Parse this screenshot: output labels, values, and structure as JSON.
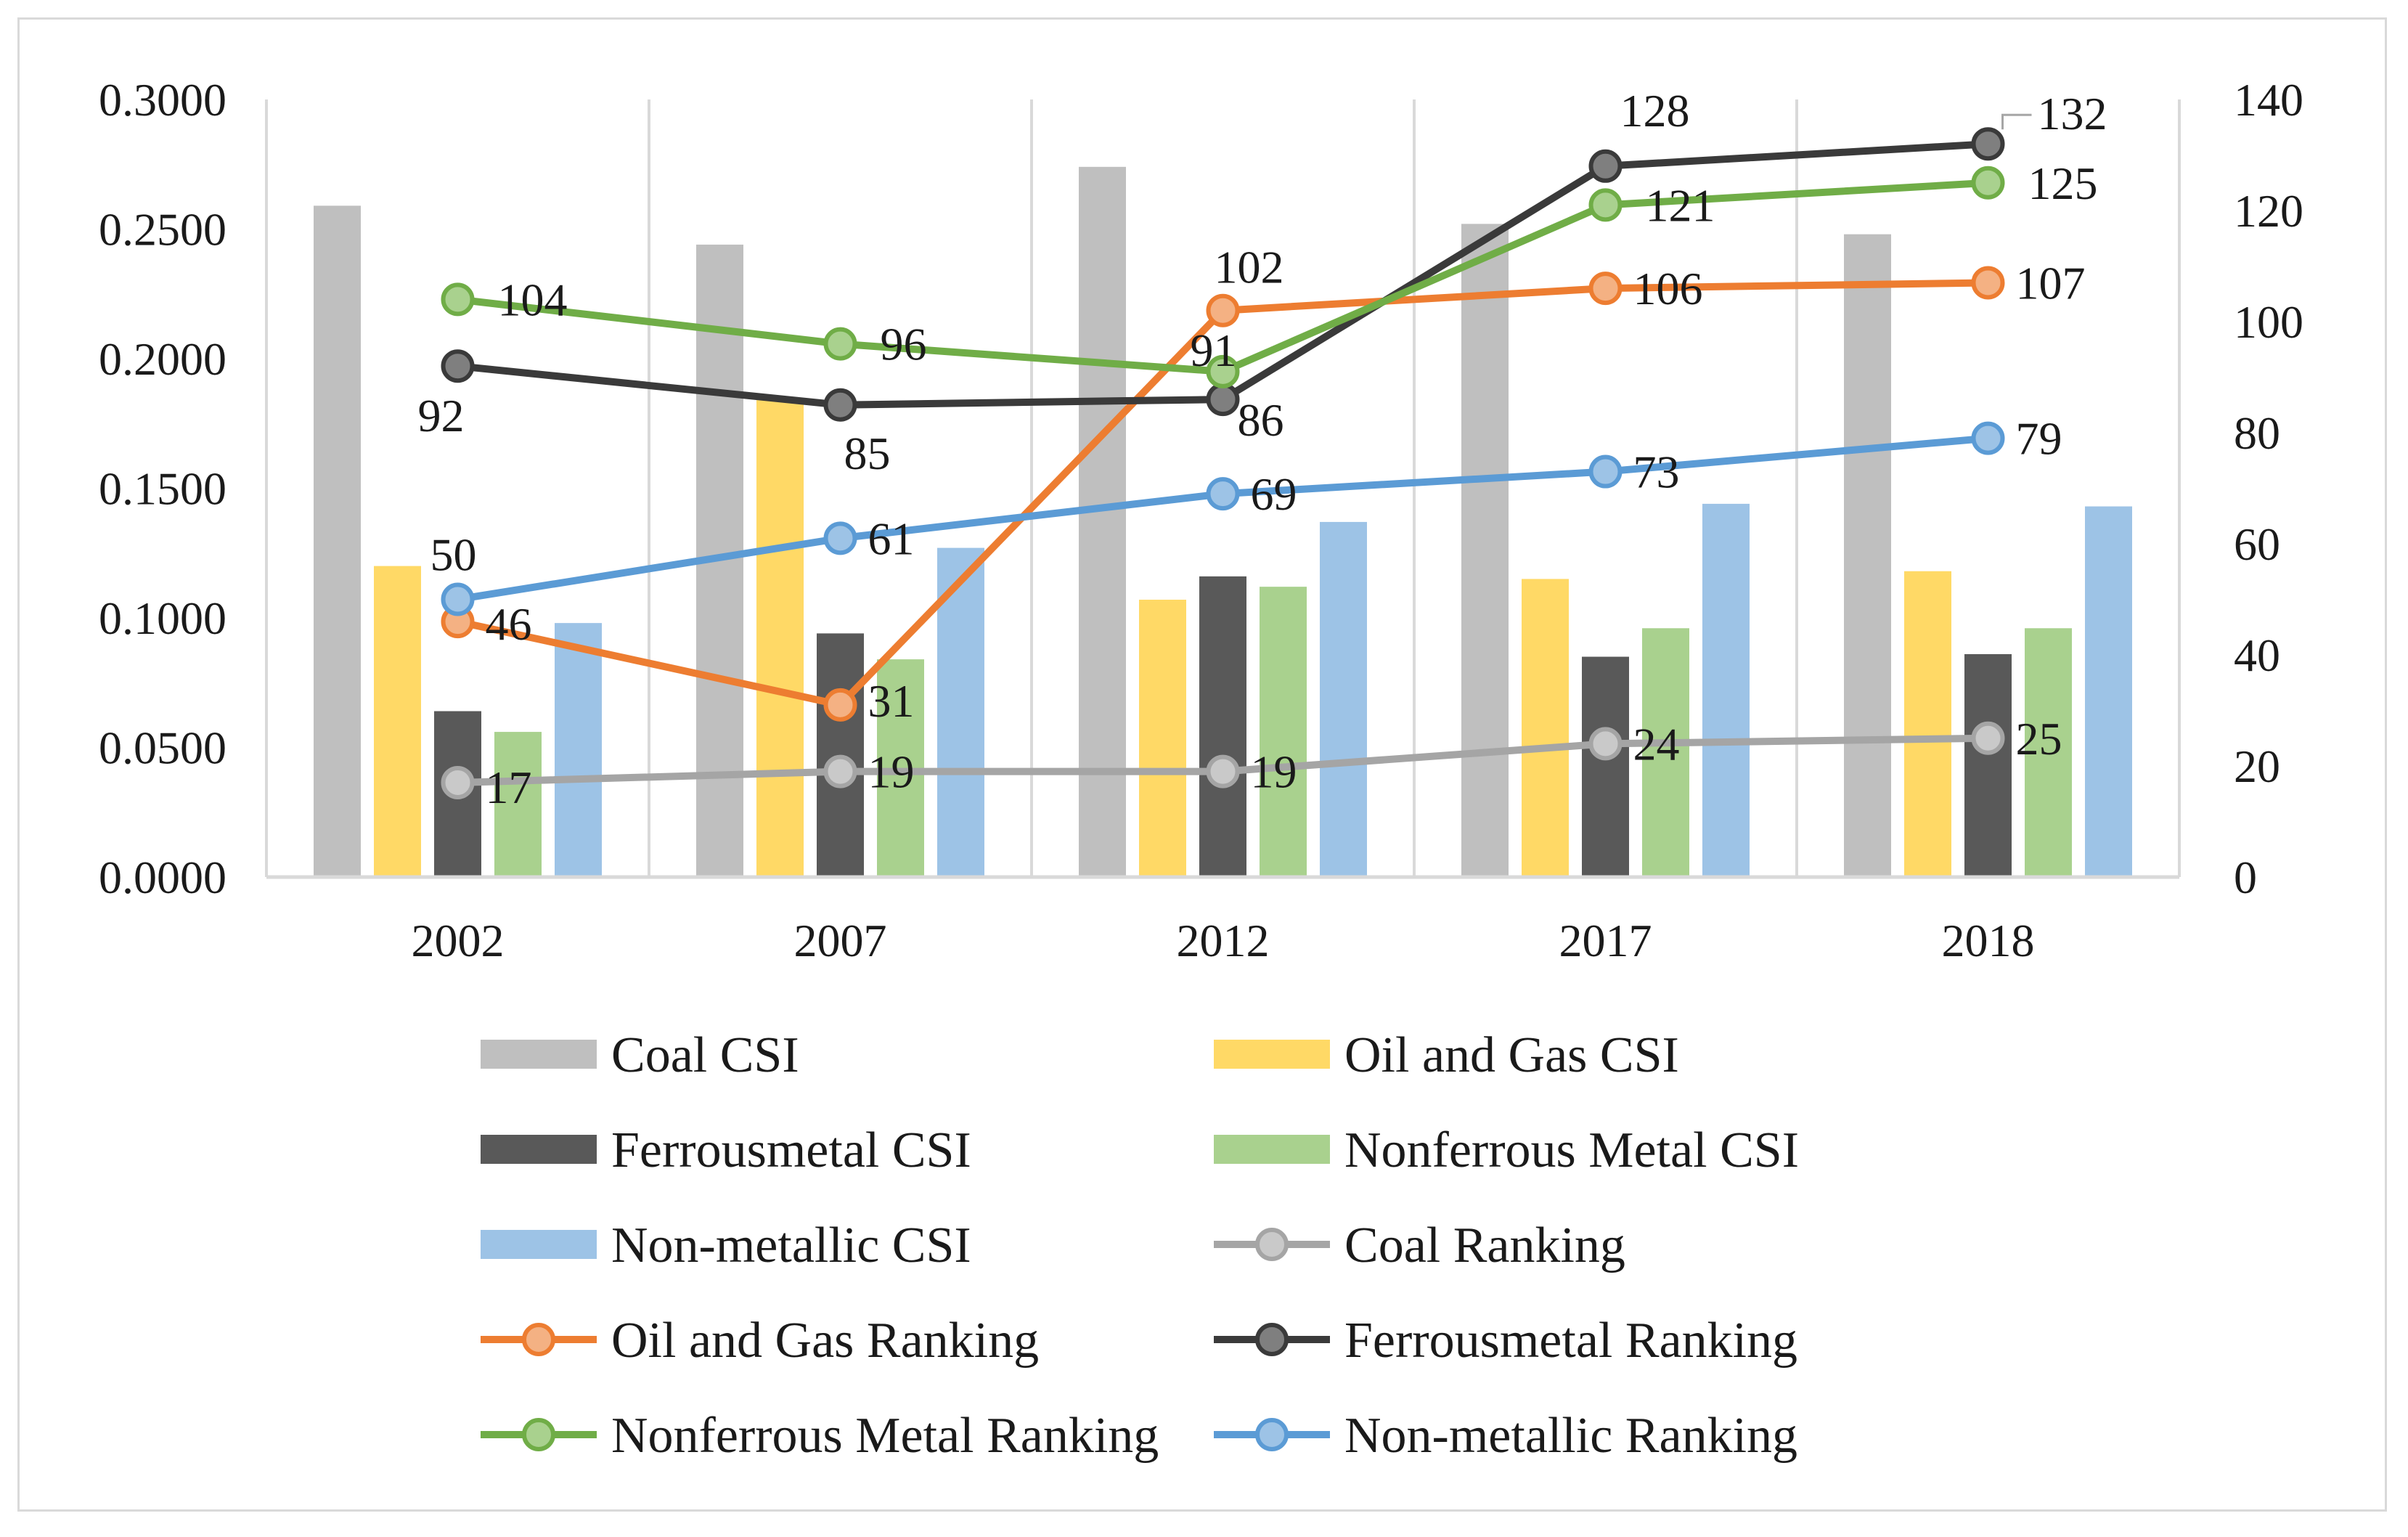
{
  "chart_data": {
    "type": "bar+line",
    "categories": [
      "2002",
      "2007",
      "2012",
      "2017",
      "2018"
    ],
    "left_axis": {
      "min": 0,
      "max": 0.3,
      "step": 0.05,
      "tick_labels": [
        "0.0000",
        "0.0500",
        "0.1000",
        "0.1500",
        "0.2000",
        "0.2500",
        "0.3000"
      ]
    },
    "right_axis": {
      "min": 0,
      "max": 140,
      "step": 20,
      "tick_labels": [
        "0",
        "20",
        "40",
        "60",
        "80",
        "100",
        "120",
        "140"
      ]
    },
    "grid": "vertical category separators",
    "legend_position": "bottom",
    "bar_series": [
      {
        "name": "Coal CSI",
        "color": "#bfbfbf",
        "values": [
          0.259,
          0.244,
          0.274,
          0.252,
          0.248
        ]
      },
      {
        "name": "Oil and Gas CSI",
        "color": "#ffd966",
        "values": [
          0.12,
          0.184,
          0.107,
          0.115,
          0.118
        ]
      },
      {
        "name": "Ferrousmetal CSI",
        "color": "#595959",
        "values": [
          0.064,
          0.094,
          0.116,
          0.085,
          0.086
        ]
      },
      {
        "name": "Nonferrous Metal CSI",
        "color": "#a9d18e",
        "values": [
          0.056,
          0.084,
          0.112,
          0.096,
          0.096
        ]
      },
      {
        "name": "Non-metallic CSI",
        "color": "#9dc3e6",
        "values": [
          0.098,
          0.127,
          0.137,
          0.144,
          0.143
        ]
      }
    ],
    "line_series": [
      {
        "name": "Coal Ranking",
        "color": "#a5a5a5",
        "marker_fill": "#c9c9c9",
        "values": [
          17,
          19,
          19,
          24,
          25
        ],
        "labels": [
          "17",
          "19",
          "19",
          "24",
          "25"
        ]
      },
      {
        "name": "Oil and Gas Ranking",
        "color": "#ed7d31",
        "marker_fill": "#f4b183",
        "values": [
          46,
          31,
          102,
          106,
          107
        ],
        "labels": [
          "46",
          "31",
          "102",
          "106",
          "107"
        ]
      },
      {
        "name": "Ferrousmetal Ranking",
        "color": "#3a3a3a",
        "marker_fill": "#7f7f7f",
        "values": [
          92,
          85,
          86,
          128,
          132
        ],
        "labels": [
          "92",
          "85",
          "86",
          "128",
          "132"
        ]
      },
      {
        "name": "Nonferrous Metal Ranking",
        "color": "#70ad47",
        "marker_fill": "#a9d18e",
        "values": [
          104,
          96,
          91,
          121,
          125
        ],
        "labels": [
          "104",
          "96",
          "91",
          "121",
          "125"
        ]
      },
      {
        "name": "Non-metallic Ranking",
        "color": "#5b9bd5",
        "marker_fill": "#9dc3e6",
        "values": [
          50,
          61,
          69,
          73,
          79
        ],
        "labels": [
          "50",
          "61",
          "69",
          "73",
          "79"
        ]
      }
    ],
    "legend": [
      {
        "label": "Coal CSI",
        "kind": "bar",
        "color": "#bfbfbf"
      },
      {
        "label": "Oil and Gas CSI",
        "kind": "bar",
        "color": "#ffd966"
      },
      {
        "label": "Ferrousmetal CSI",
        "kind": "bar",
        "color": "#595959"
      },
      {
        "label": "Nonferrous Metal CSI",
        "kind": "bar",
        "color": "#a9d18e"
      },
      {
        "label": "Non-metallic CSI",
        "kind": "bar",
        "color": "#9dc3e6"
      },
      {
        "label": "Coal Ranking",
        "kind": "line",
        "color": "#a5a5a5",
        "marker_fill": "#c9c9c9"
      },
      {
        "label": "Oil and Gas Ranking",
        "kind": "line",
        "color": "#ed7d31",
        "marker_fill": "#f4b183"
      },
      {
        "label": "Ferrousmetal Ranking",
        "kind": "line",
        "color": "#3a3a3a",
        "marker_fill": "#7f7f7f"
      },
      {
        "label": "Nonferrous Metal Ranking",
        "kind": "line",
        "color": "#70ad47",
        "marker_fill": "#a9d18e"
      },
      {
        "label": "Non-metallic Ranking",
        "kind": "line",
        "color": "#5b9bd5",
        "marker_fill": "#9dc3e6"
      }
    ]
  }
}
